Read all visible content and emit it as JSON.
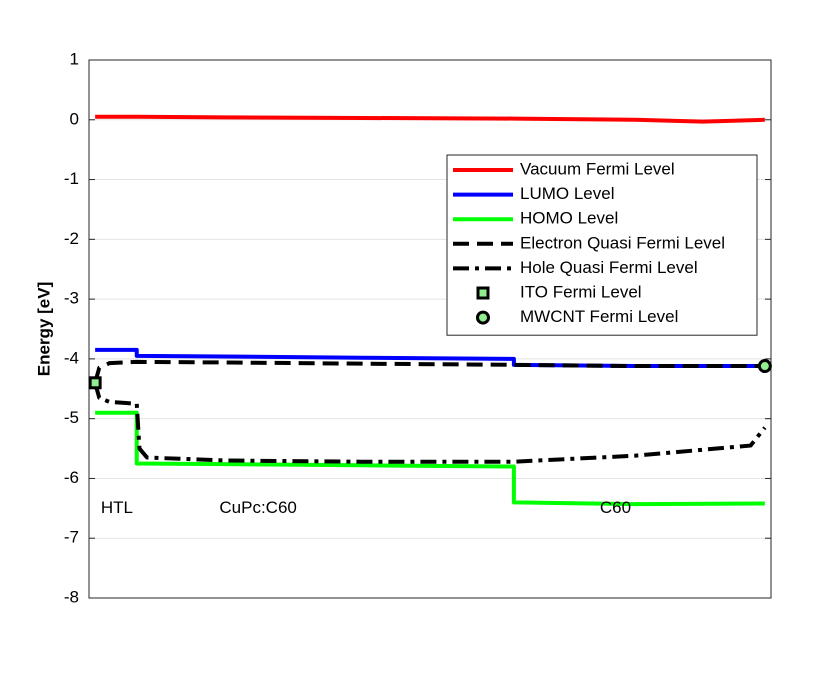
{
  "chart_data": {
    "type": "line",
    "ylabel": "Energy [eV]",
    "xlim": [
      0,
      100
    ],
    "ylim": [
      -8,
      1
    ],
    "yticks": [
      -8,
      -7,
      -6,
      -5,
      -4,
      -3,
      -2,
      -1,
      0,
      1
    ],
    "grid": true,
    "legend": "upper right",
    "series": [
      {
        "name": "Vacuum Fermi Level",
        "color": "#ff0000",
        "dash": "solid",
        "x": [
          0.9,
          7.0,
          20,
          40,
          62.3,
          80,
          90,
          99.1
        ],
        "values": [
          0.05,
          0.05,
          0.04,
          0.03,
          0.02,
          0.0,
          -0.03,
          0.0
        ]
      },
      {
        "name": "LUMO Level",
        "color": "#0000ff",
        "dash": "solid",
        "x": [
          0.9,
          7.0,
          7.0,
          20,
          40,
          62.3,
          62.3,
          80,
          99.1
        ],
        "values": [
          -3.85,
          -3.85,
          -3.95,
          -3.96,
          -3.98,
          -4.0,
          -4.1,
          -4.12,
          -4.12
        ]
      },
      {
        "name": "HOMO Level",
        "color": "#00ff00",
        "dash": "solid",
        "x": [
          0.9,
          7.0,
          7.0,
          20,
          40,
          62.3,
          62.3,
          80,
          99.1
        ],
        "values": [
          -4.9,
          -4.9,
          -5.75,
          -5.76,
          -5.78,
          -5.8,
          -6.4,
          -6.43,
          -6.42
        ]
      },
      {
        "name": "Electron Quasi Fermi Level",
        "color": "#000000",
        "dash": "dashed",
        "x": [
          0.9,
          1.5,
          3.0,
          7.0,
          20,
          40,
          62.3,
          80,
          99.1
        ],
        "values": [
          -4.4,
          -4.15,
          -4.07,
          -4.05,
          -4.06,
          -4.08,
          -4.1,
          -4.12,
          -4.12
        ]
      },
      {
        "name": "Hole Quasi Fermi Level",
        "color": "#000000",
        "dash": "dashdot",
        "x": [
          0.9,
          1.5,
          3.0,
          7.0,
          7.4,
          8.5,
          20,
          40,
          62.3,
          80,
          97,
          99.1
        ],
        "values": [
          -4.4,
          -4.65,
          -4.72,
          -4.75,
          -5.5,
          -5.65,
          -5.7,
          -5.72,
          -5.72,
          -5.62,
          -5.45,
          -5.15
        ]
      },
      {
        "name": "ITO Fermi Level",
        "color": "#90ee90",
        "marker": "square",
        "x": [
          0.9
        ],
        "values": [
          -4.4
        ]
      },
      {
        "name": "MWCNT Fermi Level",
        "color": "#90ee90",
        "marker": "circle",
        "x": [
          99.1
        ],
        "values": [
          -4.12
        ]
      }
    ],
    "annotations": [
      {
        "text": "HTL",
        "x": 1,
        "y": -6.5
      },
      {
        "text": "CuPc:C60",
        "x": 24.8,
        "y": -6.5
      },
      {
        "text": "C60",
        "x": 77.2,
        "y": -6.5
      }
    ]
  }
}
